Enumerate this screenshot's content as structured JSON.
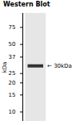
{
  "chart_data": {
    "type": "band",
    "title": "Western Blot",
    "ylabel": "kDa",
    "log": "y",
    "ylim": [
      8,
      105
    ],
    "yticks": [
      10,
      15,
      20,
      25,
      37,
      50,
      75
    ],
    "values": [
      30
    ],
    "value_labels": [
      "← 30kDa"
    ],
    "data_labels": true,
    "color": "#333333"
  }
}
